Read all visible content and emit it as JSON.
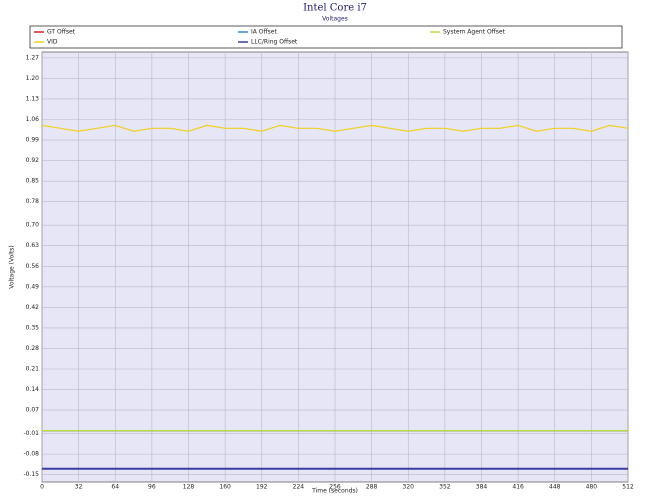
{
  "chart_data": {
    "type": "line",
    "title": "Intel Core i7",
    "subtitle": "Voltages",
    "x_label": "Time (seconds)",
    "y_label": "Voltage (Volts)",
    "x": [
      0,
      16,
      32,
      48,
      64,
      80,
      96,
      112,
      128,
      144,
      160,
      176,
      192,
      208,
      224,
      240,
      256,
      272,
      288,
      304,
      320,
      336,
      352,
      368,
      384,
      400,
      416,
      432,
      448,
      464,
      480,
      496,
      512
    ],
    "series": [
      {
        "name": "GT Offset",
        "color": "#e02020",
        "values": [
          0,
          0,
          0,
          0,
          0,
          0,
          0,
          0,
          0,
          0,
          0,
          0,
          0,
          0,
          0,
          0,
          0,
          0,
          0,
          0,
          0,
          0,
          0,
          0,
          0,
          0,
          0,
          0,
          0,
          0,
          0,
          0,
          0
        ]
      },
      {
        "name": "IA Offset",
        "color": "#2a8fd0",
        "values": [
          0,
          0,
          0,
          0,
          0,
          0,
          0,
          0,
          0,
          0,
          0,
          0,
          0,
          0,
          0,
          0,
          0,
          0,
          0,
          0,
          0,
          0,
          0,
          0,
          0,
          0,
          0,
          0,
          0,
          0,
          0,
          0,
          0
        ]
      },
      {
        "name": "System Agent Offset",
        "color": "#b8e030",
        "values": [
          0,
          0,
          0,
          0,
          0,
          0,
          0,
          0,
          0,
          0,
          0,
          0,
          0,
          0,
          0,
          0,
          0,
          0,
          0,
          0,
          0,
          0,
          0,
          0,
          0,
          0,
          0,
          0,
          0,
          0,
          0,
          0,
          0
        ]
      },
      {
        "name": "VID",
        "color": "#f0d020",
        "values": [
          1.04,
          1.03,
          1.02,
          1.03,
          1.04,
          1.02,
          1.03,
          1.03,
          1.02,
          1.04,
          1.03,
          1.03,
          1.02,
          1.04,
          1.03,
          1.03,
          1.02,
          1.03,
          1.04,
          1.03,
          1.02,
          1.03,
          1.03,
          1.02,
          1.03,
          1.03,
          1.04,
          1.02,
          1.03,
          1.03,
          1.02,
          1.04,
          1.03
        ]
      },
      {
        "name": "LLC/Ring Offset",
        "color": "#3a3aa8",
        "values": [
          -0.13,
          -0.13,
          -0.13,
          -0.13,
          -0.13,
          -0.13,
          -0.13,
          -0.13,
          -0.13,
          -0.13,
          -0.13,
          -0.13,
          -0.13,
          -0.13,
          -0.13,
          -0.13,
          -0.13,
          -0.13,
          -0.13,
          -0.13,
          -0.13,
          -0.13,
          -0.13,
          -0.13,
          -0.13,
          -0.13,
          -0.13,
          -0.13,
          -0.13,
          -0.13,
          -0.13,
          -0.13,
          -0.13
        ]
      }
    ],
    "xlim": [
      0,
      512
    ],
    "xticks": [
      0,
      32,
      64,
      96,
      128,
      160,
      192,
      224,
      256,
      288,
      320,
      352,
      384,
      416,
      448,
      480,
      512
    ],
    "ylim": [
      -0.175,
      1.29
    ],
    "yticks": [
      1.27,
      {
        "value": 1.2,
        "label": "1.20"
      },
      1.13,
      1.06,
      0.99,
      0.92,
      0.85,
      0.78,
      {
        "value": 0.7,
        "label": "0.70"
      },
      0.63,
      0.56,
      0.49,
      0.42,
      0.35,
      0.28,
      0.21,
      0.14,
      0.07,
      -0.01,
      -0.08,
      -0.15
    ],
    "grid": true
  }
}
